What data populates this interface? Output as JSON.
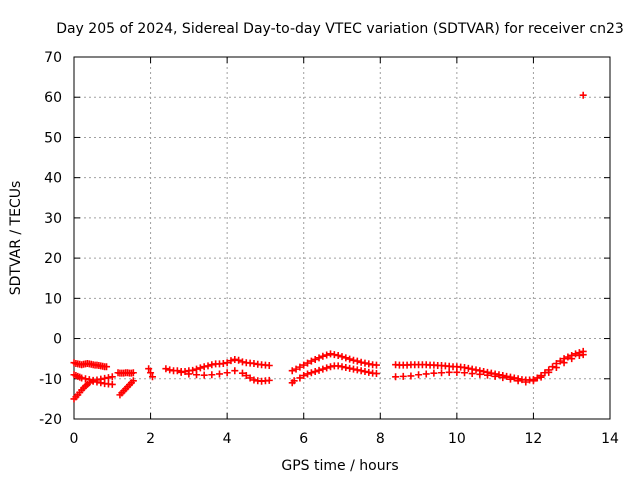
{
  "chart_data": {
    "type": "scatter",
    "title": "Day 205 of 2024, Sidereal Day-to-day VTEC variation (SDTVAR) for receiver cn23",
    "xlabel": "GPS time / hours",
    "ylabel": "SDTVAR / TECUs",
    "xlim": [
      0,
      14
    ],
    "ylim": [
      -20,
      70
    ],
    "xticks": [
      0,
      2,
      4,
      6,
      8,
      10,
      12,
      14
    ],
    "yticks": [
      -20,
      -10,
      0,
      10,
      20,
      30,
      40,
      50,
      60,
      70
    ],
    "grid": true,
    "marker": "+",
    "color": "#ff0000",
    "series": [
      {
        "name": "SDTVAR",
        "x": [
          0.0,
          0.05,
          0.1,
          0.15,
          0.2,
          0.25,
          0.3,
          0.35,
          0.4,
          0.45,
          0.5,
          0.55,
          0.6,
          0.65,
          0.7,
          0.75,
          0.8,
          0.85,
          0.0,
          0.05,
          0.1,
          0.15,
          0.2,
          0.3,
          0.4,
          0.5,
          0.6,
          0.7,
          0.8,
          0.9,
          1.0,
          0.0,
          0.05,
          0.1,
          0.15,
          0.2,
          0.25,
          0.3,
          0.35,
          0.4,
          0.5,
          0.6,
          0.7,
          0.8,
          0.9,
          1.0,
          1.15,
          1.2,
          1.25,
          1.3,
          1.35,
          1.4,
          1.45,
          1.5,
          1.55,
          1.2,
          1.25,
          1.3,
          1.35,
          1.4,
          1.45,
          1.5,
          1.55,
          1.95,
          2.0,
          2.05,
          2.4,
          2.5,
          2.6,
          2.7,
          2.8,
          2.9,
          3.0,
          3.1,
          3.2,
          3.3,
          3.4,
          3.5,
          3.6,
          3.7,
          3.8,
          3.9,
          4.0,
          4.1,
          4.2,
          4.3,
          4.4,
          4.5,
          4.6,
          4.7,
          4.8,
          4.9,
          5.0,
          5.1,
          2.8,
          3.0,
          3.2,
          3.4,
          3.6,
          3.8,
          4.0,
          4.2,
          4.4,
          4.5,
          4.6,
          4.7,
          4.8,
          4.9,
          5.0,
          5.1,
          5.7,
          5.8,
          5.9,
          6.0,
          6.1,
          6.2,
          6.3,
          6.4,
          6.5,
          6.6,
          6.7,
          6.8,
          6.9,
          7.0,
          7.1,
          7.2,
          7.3,
          7.4,
          7.5,
          7.6,
          7.7,
          7.8,
          7.9,
          5.75,
          5.9,
          6.0,
          6.1,
          6.2,
          6.3,
          6.4,
          6.5,
          6.6,
          6.7,
          6.8,
          6.9,
          7.0,
          7.1,
          7.2,
          7.3,
          7.4,
          7.5,
          7.6,
          7.7,
          7.8,
          7.9,
          5.7,
          8.4,
          8.5,
          8.6,
          8.7,
          8.8,
          8.9,
          9.0,
          9.1,
          9.2,
          9.3,
          9.4,
          9.5,
          9.6,
          9.7,
          9.8,
          9.9,
          10.0,
          10.1,
          10.2,
          10.3,
          10.4,
          10.5,
          10.6,
          10.7,
          10.8,
          10.9,
          11.0,
          11.1,
          11.2,
          11.3,
          11.4,
          11.5,
          11.6,
          11.7,
          11.8,
          11.9,
          12.0,
          12.1,
          12.2,
          12.3,
          12.4,
          12.5,
          12.6,
          12.7,
          12.8,
          12.9,
          13.0,
          13.1,
          13.2,
          13.3,
          8.4,
          8.6,
          8.8,
          9.0,
          9.2,
          9.4,
          9.6,
          9.8,
          10.0,
          10.2,
          10.4,
          10.6,
          10.8,
          11.0,
          11.2,
          11.4,
          11.6,
          11.8,
          12.0,
          12.2,
          12.4,
          12.6,
          12.8,
          13.0,
          13.2,
          13.3,
          13.3
        ],
        "y": [
          -6,
          -6.2,
          -6.3,
          -6.4,
          -6.5,
          -6.4,
          -6.3,
          -6.2,
          -6.3,
          -6.4,
          -6.5,
          -6.6,
          -6.6,
          -6.7,
          -6.8,
          -6.9,
          -7.0,
          -7.0,
          -9,
          -9.2,
          -9.4,
          -9.6,
          -9.8,
          -10,
          -10.2,
          -10.4,
          -10.3,
          -10.1,
          -9.9,
          -9.7,
          -9.5,
          -15,
          -14.5,
          -14,
          -13.4,
          -12.8,
          -12.3,
          -11.8,
          -11.4,
          -11,
          -10.6,
          -10.8,
          -11,
          -11.2,
          -11.3,
          -11.4,
          -8.5,
          -8.6,
          -8.6,
          -8.6,
          -8.5,
          -8.5,
          -8.6,
          -8.6,
          -8.5,
          -14,
          -13.5,
          -13,
          -12.5,
          -12,
          -11.5,
          -11,
          -10.5,
          -7.5,
          -8.5,
          -9.5,
          -7.5,
          -7.8,
          -8,
          -8,
          -8.2,
          -8.2,
          -8,
          -7.9,
          -7.6,
          -7.3,
          -7,
          -6.8,
          -6.5,
          -6.3,
          -6.3,
          -6.2,
          -6,
          -5.5,
          -5.2,
          -5.4,
          -5.8,
          -6,
          -6.1,
          -6.2,
          -6.4,
          -6.5,
          -6.6,
          -6.7,
          -8.4,
          -8.8,
          -9,
          -9.1,
          -9,
          -8.8,
          -8.5,
          -8,
          -8.6,
          -9.2,
          -9.8,
          -10.3,
          -10.5,
          -10.6,
          -10.5,
          -10.4,
          -8,
          -7.6,
          -7.1,
          -6.6,
          -6.1,
          -5.6,
          -5.2,
          -4.8,
          -4.4,
          -4.1,
          -3.8,
          -4,
          -4.2,
          -4.5,
          -4.8,
          -5.1,
          -5.4,
          -5.6,
          -5.9,
          -6.1,
          -6.3,
          -6.5,
          -6.6,
          -10.5,
          -9.8,
          -9.2,
          -8.8,
          -8.5,
          -8.2,
          -7.9,
          -7.6,
          -7.3,
          -7.0,
          -6.8,
          -6.8,
          -7.0,
          -7.2,
          -7.4,
          -7.6,
          -7.8,
          -8.0,
          -8.2,
          -8.4,
          -8.6,
          -8.7,
          -11,
          -6.5,
          -6.6,
          -6.6,
          -6.6,
          -6.5,
          -6.5,
          -6.5,
          -6.5,
          -6.5,
          -6.6,
          -6.6,
          -6.7,
          -6.7,
          -6.8,
          -6.9,
          -7.0,
          -7.0,
          -7.1,
          -7.2,
          -7.4,
          -7.6,
          -7.8,
          -8.0,
          -8.2,
          -8.4,
          -8.6,
          -8.8,
          -9.0,
          -9.2,
          -9.4,
          -9.6,
          -9.8,
          -10.0,
          -10.2,
          -10.3,
          -10.3,
          -10.2,
          -9.8,
          -9.2,
          -8.5,
          -7.8,
          -7.0,
          -6.2,
          -5.6,
          -5.0,
          -4.6,
          -4.2,
          -3.8,
          -3.5,
          -3.2,
          -9.5,
          -9.4,
          -9.3,
          -9.0,
          -8.8,
          -8.6,
          -8.5,
          -8.4,
          -8.4,
          -8.5,
          -8.7,
          -8.9,
          -9.1,
          -9.4,
          -9.7,
          -10.1,
          -10.5,
          -10.8,
          -10.5,
          -9.6,
          -8.4,
          -7.2,
          -6.0,
          -5.0,
          -4.2,
          -4.0,
          60.5
        ]
      }
    ]
  }
}
